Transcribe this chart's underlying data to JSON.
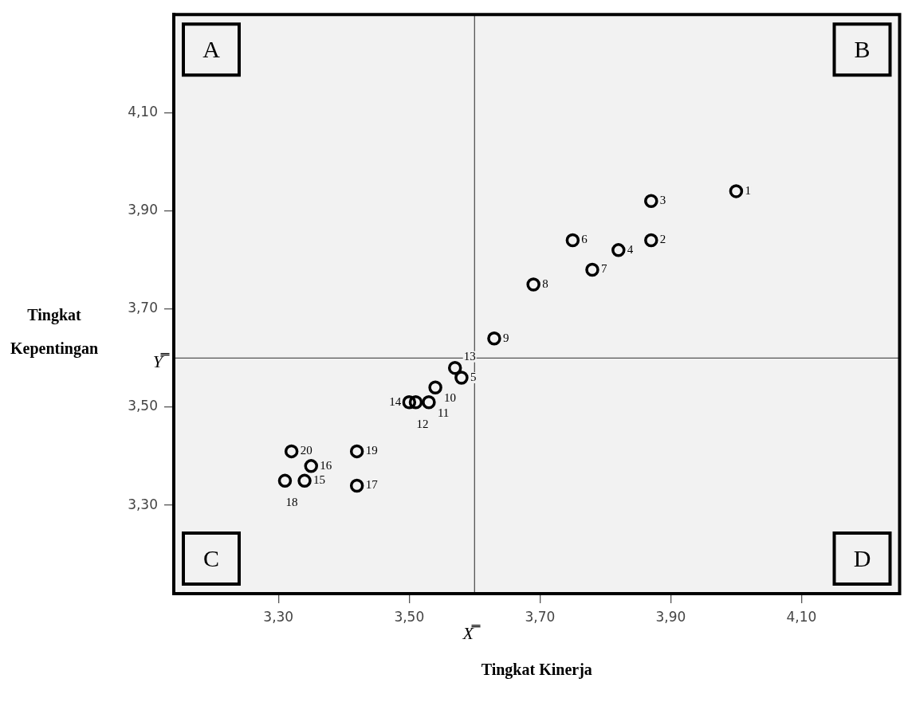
{
  "chart_data": {
    "type": "scatter",
    "xlabel": "Tingkat Kinerja",
    "ylabel": "Tingkat Kepentingan",
    "xlim": [
      3.14,
      4.25
    ],
    "ylim": [
      3.12,
      4.3
    ],
    "xticks": [
      {
        "value": 3.3,
        "label": "3,30"
      },
      {
        "value": 3.5,
        "label": "3,50"
      },
      {
        "value": 3.7,
        "label": "3,70"
      },
      {
        "value": 3.9,
        "label": "3,90"
      },
      {
        "value": 4.1,
        "label": "4,10"
      }
    ],
    "yticks": [
      {
        "value": 3.3,
        "label": "3,30"
      },
      {
        "value": 3.5,
        "label": "3,50"
      },
      {
        "value": 3.7,
        "label": "3,70"
      },
      {
        "value": 3.9,
        "label": "3,90"
      },
      {
        "value": 4.1,
        "label": "4,10"
      }
    ],
    "marker": "circle",
    "series": [
      {
        "color": "#000000",
        "x": [
          4.0,
          3.87,
          3.87,
          3.82,
          3.58,
          3.75,
          3.78,
          3.69,
          3.63,
          3.54,
          3.53,
          3.51,
          3.57,
          3.5,
          3.34,
          3.35,
          3.42,
          3.31,
          3.42,
          3.32
        ],
        "values": [
          3.94,
          3.84,
          3.92,
          3.82,
          3.56,
          3.84,
          3.78,
          3.75,
          3.64,
          3.54,
          3.51,
          3.51,
          3.58,
          3.51,
          3.35,
          3.38,
          3.34,
          3.35,
          3.41,
          3.41
        ]
      }
    ],
    "ref_lines": [
      {
        "axis": "x",
        "value": 3.6,
        "label": "X̿"
      },
      {
        "axis": "y",
        "value": 3.6,
        "label": "Y̿"
      }
    ],
    "annotations": [
      "A",
      "B",
      "C",
      "D",
      {
        "text": "1",
        "x": 4.0,
        "y": 3.94
      },
      {
        "text": "2",
        "x": 3.87,
        "y": 3.84
      },
      {
        "text": "3",
        "x": 3.87,
        "y": 3.92
      },
      {
        "text": "4",
        "x": 3.82,
        "y": 3.82
      },
      {
        "text": "5",
        "x": 3.58,
        "y": 3.56
      },
      {
        "text": "6",
        "x": 3.75,
        "y": 3.84
      },
      {
        "text": "7",
        "x": 3.78,
        "y": 3.78
      },
      {
        "text": "8",
        "x": 3.69,
        "y": 3.75
      },
      {
        "text": "9",
        "x": 3.63,
        "y": 3.64
      },
      {
        "text": "10",
        "x": 3.54,
        "y": 3.54
      },
      {
        "text": "11",
        "x": 3.53,
        "y": 3.51
      },
      {
        "text": "12",
        "x": 3.51,
        "y": 3.51
      },
      {
        "text": "13",
        "x": 3.57,
        "y": 3.58
      },
      {
        "text": "14",
        "x": 3.5,
        "y": 3.51
      },
      {
        "text": "15",
        "x": 3.34,
        "y": 3.35
      },
      {
        "text": "16",
        "x": 3.35,
        "y": 3.38
      },
      {
        "text": "17",
        "x": 3.42,
        "y": 3.34
      },
      {
        "text": "18",
        "x": 3.31,
        "y": 3.35
      },
      {
        "text": "19",
        "x": 3.42,
        "y": 3.41
      },
      {
        "text": "20",
        "x": 3.32,
        "y": 3.41
      }
    ]
  }
}
